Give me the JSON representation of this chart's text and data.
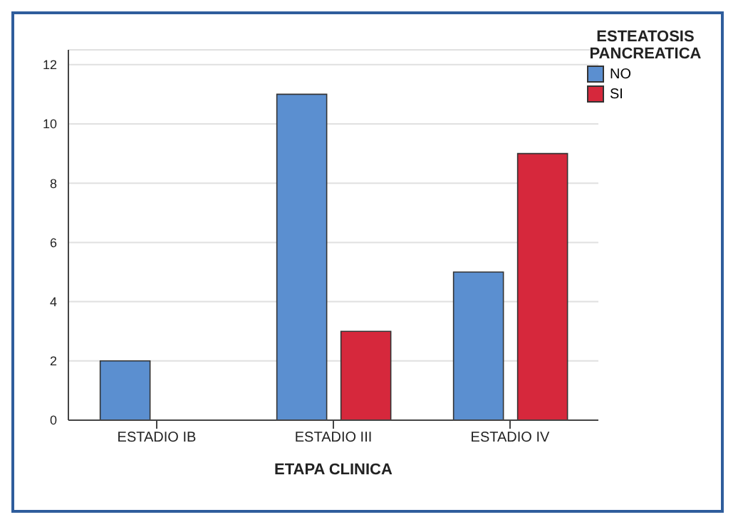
{
  "chart_data": {
    "type": "bar",
    "xlabel": "ETAPA CLINICA",
    "legend_title": "ESTEATOSIS PANCREATICA",
    "categories": [
      "ESTADIO IB",
      "ESTADIO III",
      "ESTADIO IV"
    ],
    "series": [
      {
        "name": "NO",
        "color": "#5b8fd0",
        "values": [
          2,
          11,
          5
        ]
      },
      {
        "name": "SI",
        "color": "#d6283c",
        "values": [
          0,
          3,
          9
        ]
      }
    ],
    "ylim": [
      0,
      12.5
    ],
    "yticks": [
      0,
      2,
      4,
      6,
      8,
      10,
      12
    ],
    "grid": "y",
    "legend": "top right"
  }
}
